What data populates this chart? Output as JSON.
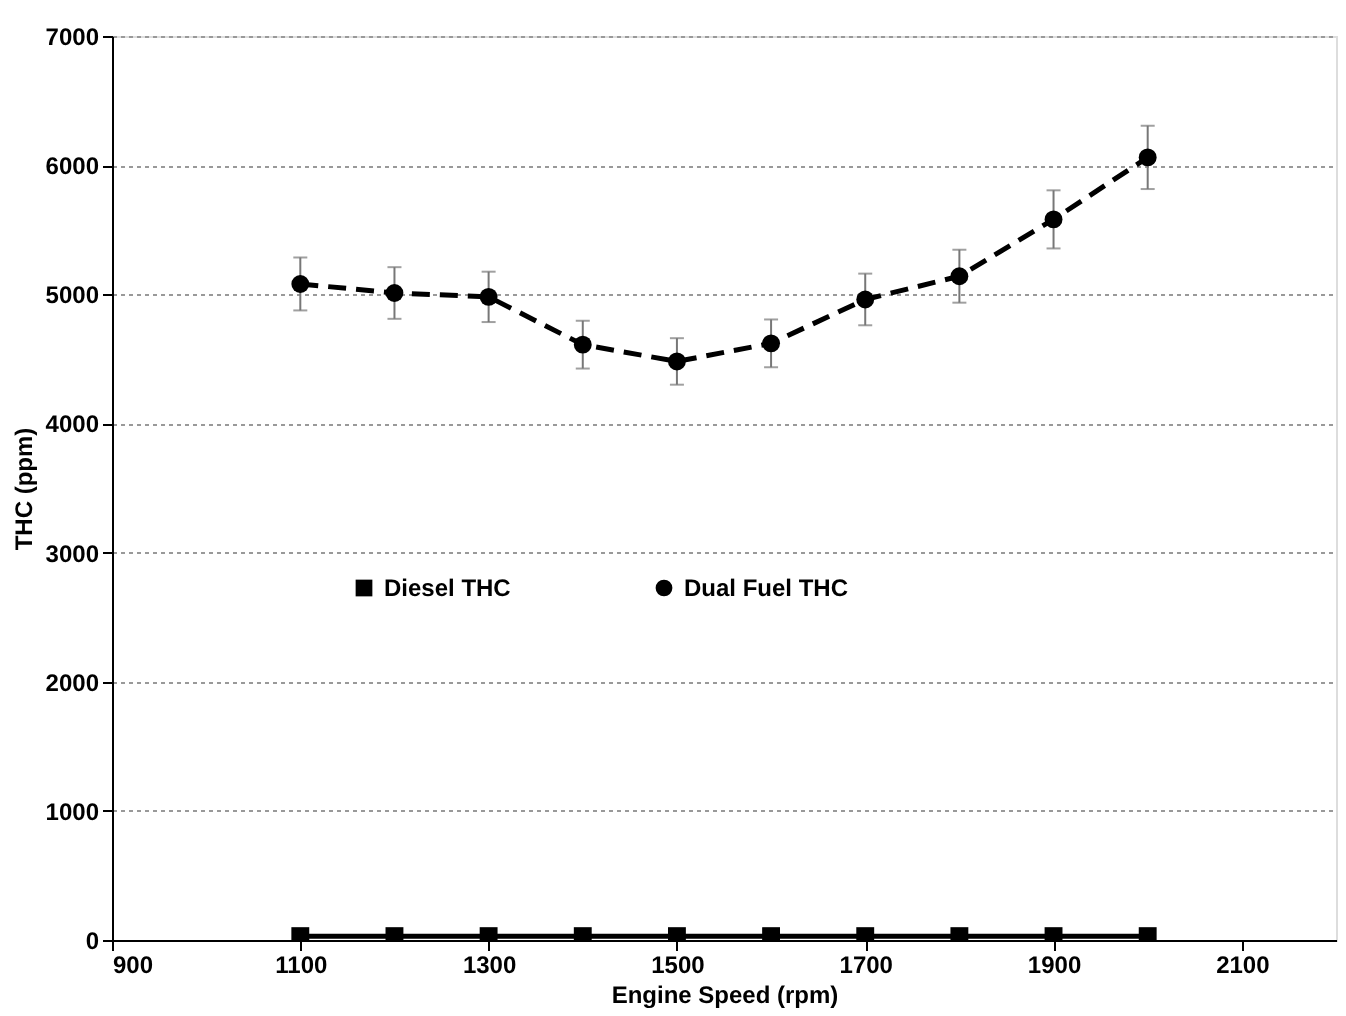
{
  "chart_data": {
    "type": "line",
    "xlabel": "Engine Speed (rpm)",
    "ylabel": "THC  (ppm)",
    "x": [
      1100,
      1200,
      1300,
      1400,
      1500,
      1600,
      1700,
      1800,
      1900,
      2000
    ],
    "series": [
      {
        "name": "Diesel THC",
        "color": "#000000",
        "marker": "square",
        "line_style": "solid",
        "values": [
          30,
          30,
          30,
          30,
          30,
          30,
          30,
          30,
          30,
          30
        ]
      },
      {
        "name": "Dual Fuel THC",
        "color": "#000000",
        "marker": "circle",
        "line_style": "dashed",
        "values": [
          5080,
          5010,
          4980,
          4610,
          4480,
          4620,
          4960,
          5140,
          5580,
          6060
        ],
        "errors": [
          205,
          200,
          195,
          185,
          180,
          185,
          200,
          205,
          225,
          245
        ]
      }
    ],
    "xlim": [
      900,
      2200
    ],
    "xticks": [
      900,
      1100,
      1300,
      1500,
      1700,
      1900,
      2100
    ],
    "ylim": [
      0,
      7000
    ],
    "yticks": [
      0,
      1000,
      2000,
      3000,
      4000,
      5000,
      6000,
      7000
    ],
    "grid": "y",
    "legend": "center"
  }
}
